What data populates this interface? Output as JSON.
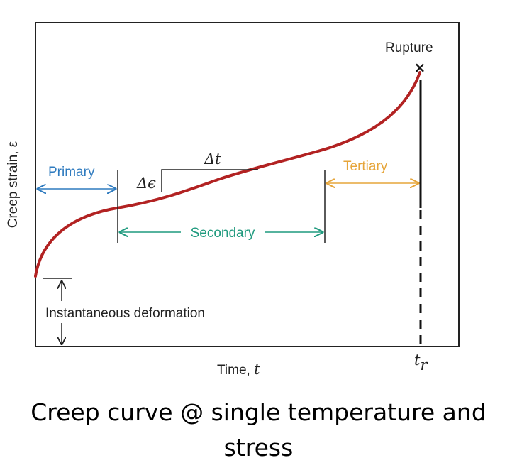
{
  "figure": {
    "y_axis_label": "Creep strain, ε",
    "x_axis_label_text": "Time, ",
    "x_axis_label_var": "t",
    "rupture_label": "Rupture",
    "rupture_time_main": "t",
    "rupture_time_sub": "r",
    "primary_label": "Primary",
    "secondary_label": "Secondary",
    "tertiary_label": "Tertiary",
    "instantaneous_label": "Instantaneous deformation",
    "delta_t_label": "Δt",
    "delta_eps_label": "Δϵ"
  },
  "colors": {
    "curve": "#b22222",
    "primary": "#2f7bbf",
    "secondary": "#1f9a7e",
    "tertiary": "#e6a53a",
    "frame": "#222222"
  },
  "caption": "Creep curve @ single temperature and stress"
}
